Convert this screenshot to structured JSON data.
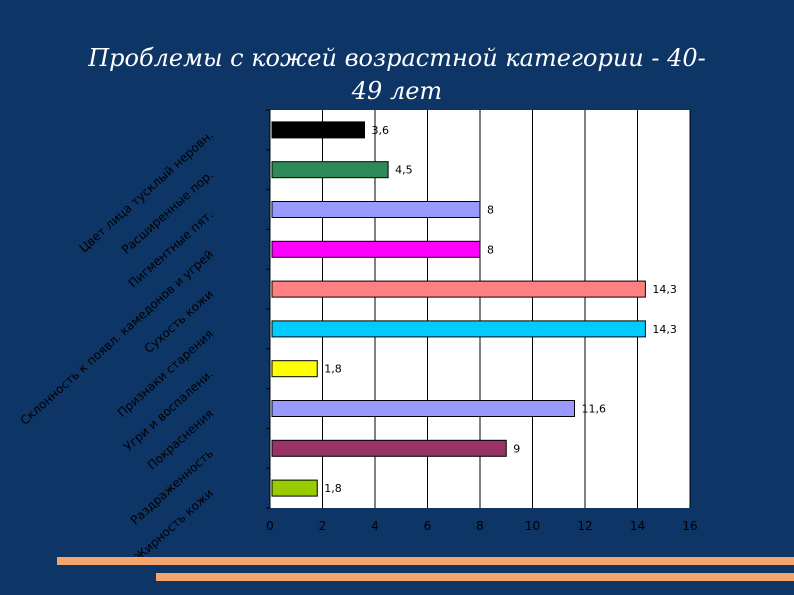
{
  "title_line1": "Проблемы с кожей возрастной категории - 40-",
  "title_line2": "49 лет",
  "colors": {
    "background": "#0d3566",
    "plot_bg": "#ffffff",
    "stripes": "#f4a46c"
  },
  "chart_data": {
    "type": "bar",
    "orientation": "horizontal",
    "xlim": [
      0,
      16
    ],
    "x_ticks": [
      "0",
      "2",
      "4",
      "6",
      "8",
      "10",
      "12",
      "14",
      "16"
    ],
    "grid": true,
    "categories": [
      "Цвет лица тусклый неровн.",
      "Расширенные пор.",
      "Пигментные пят.",
      "Склонность к появл. камедонов и угрей",
      "Сухость кожи",
      "Признаки старения",
      "Угри и воспалени.",
      "Покраснения",
      "Раздраженность",
      "Жирность кожи"
    ],
    "values": [
      3.6,
      4.5,
      8,
      8,
      14.3,
      14.3,
      1.8,
      11.6,
      9,
      1.8
    ],
    "value_labels": [
      "3,6",
      "4,5",
      "8",
      "8",
      "14,3",
      "14,3",
      "1,8",
      "11,6",
      "9",
      "1,8"
    ],
    "bar_colors": [
      "#000000",
      "#2f8a5a",
      "#9999ff",
      "#ff00ff",
      "#ff8080",
      "#00ccff",
      "#ffff00",
      "#9999ff",
      "#993366",
      "#99cc00"
    ]
  }
}
